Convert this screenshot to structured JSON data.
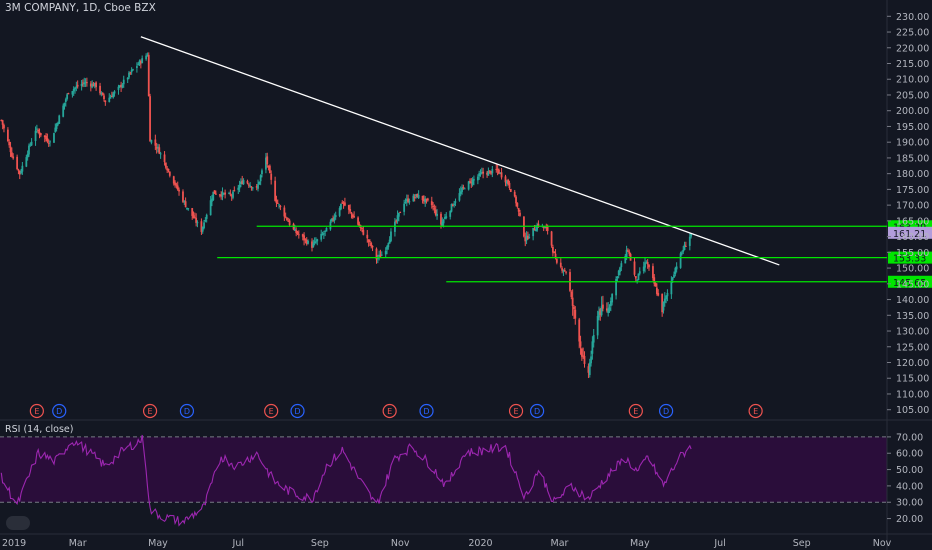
{
  "header": {
    "title": "3M COMPANY, 1D, Cboe BZX"
  },
  "rsi": {
    "title": "RSI (14, close)"
  },
  "colors": {
    "background": "#131722",
    "up": "#26a69a",
    "down": "#ef5350",
    "trendline": "#ffffff",
    "support": "#00e600",
    "rsi_line": "#9c27b0",
    "rsi_band": "#2a0d3a",
    "price_tag": "#b39ddb",
    "earnings": "#ef5350",
    "dividend": "#2962ff"
  },
  "chart_data": [
    {
      "type": "candlestick",
      "title": "3M COMPANY, 1D, Cboe BZX",
      "x_tick_labels": [
        "2019",
        "Mar",
        "May",
        "Jul",
        "Sep",
        "Nov",
        "2020",
        "Mar",
        "May",
        "Jul",
        "Sep",
        "Nov"
      ],
      "y_tick_labels": [
        "230.00",
        "225.00",
        "220.00",
        "215.00",
        "210.00",
        "205.00",
        "200.00",
        "195.00",
        "190.00",
        "185.00",
        "180.00",
        "175.00",
        "170.00",
        "165.00",
        "160.00",
        "155.00",
        "150.00",
        "145.00",
        "140.00",
        "135.00",
        "130.00",
        "125.00",
        "120.00",
        "115.00",
        "110.00",
        "105.00"
      ],
      "ylim": [
        103,
        232
      ],
      "grid": false,
      "series": [
        {
          "anchors": [
            [
              "2019-01-02",
              197
            ],
            [
              "2019-01-10",
              186
            ],
            [
              "2019-01-16",
              180
            ],
            [
              "2019-01-28",
              194
            ],
            [
              "2019-02-08",
              190
            ],
            [
              "2019-02-22",
              206
            ],
            [
              "2019-03-06",
              209
            ],
            [
              "2019-03-15",
              208
            ],
            [
              "2019-03-22",
              203
            ],
            [
              "2019-04-01",
              207
            ],
            [
              "2019-04-12",
              213
            ],
            [
              "2019-04-23",
              218
            ],
            [
              "2019-04-25",
              191
            ],
            [
              "2019-05-01",
              188
            ],
            [
              "2019-05-10",
              180
            ],
            [
              "2019-05-22",
              170
            ],
            [
              "2019-06-03",
              162
            ],
            [
              "2019-06-12",
              174
            ],
            [
              "2019-06-26",
              173
            ],
            [
              "2019-07-05",
              178
            ],
            [
              "2019-07-15",
              175
            ],
            [
              "2019-07-22",
              185
            ],
            [
              "2019-07-29",
              172
            ],
            [
              "2019-08-12",
              162
            ],
            [
              "2019-08-26",
              157
            ],
            [
              "2019-09-06",
              162
            ],
            [
              "2019-09-18",
              171
            ],
            [
              "2019-09-27",
              166
            ],
            [
              "2019-10-10",
              157
            ],
            [
              "2019-10-14",
              153
            ],
            [
              "2019-10-20",
              155
            ],
            [
              "2019-10-25",
              161
            ],
            [
              "2019-11-04",
              171
            ],
            [
              "2019-11-14",
              173
            ],
            [
              "2019-11-25",
              170
            ],
            [
              "2019-12-02",
              164
            ],
            [
              "2019-12-12",
              171
            ],
            [
              "2019-12-20",
              176
            ],
            [
              "2020-01-02",
              180
            ],
            [
              "2020-01-14",
              181
            ],
            [
              "2020-01-22",
              177
            ],
            [
              "2020-01-28",
              171
            ],
            [
              "2020-02-04",
              159
            ],
            [
              "2020-02-14",
              164
            ],
            [
              "2020-02-21",
              162
            ],
            [
              "2020-02-28",
              151
            ],
            [
              "2020-03-06",
              149
            ],
            [
              "2020-03-12",
              136
            ],
            [
              "2020-03-16",
              128
            ],
            [
              "2020-03-20",
              118
            ],
            [
              "2020-03-23",
              117
            ],
            [
              "2020-03-30",
              136
            ],
            [
              "2020-04-07",
              137
            ],
            [
              "2020-04-14",
              148
            ],
            [
              "2020-04-22",
              156
            ],
            [
              "2020-04-28",
              146
            ],
            [
              "2020-05-06",
              152
            ],
            [
              "2020-05-12",
              145
            ],
            [
              "2020-05-18",
              137
            ],
            [
              "2020-05-22",
              142
            ],
            [
              "2020-05-28",
              150
            ],
            [
              "2020-06-03",
              156
            ],
            [
              "2020-06-09",
              161
            ]
          ]
        }
      ],
      "trendline": {
        "start": [
          "2019-04-18",
          223.5
        ],
        "end": [
          "2020-08-15",
          151
        ]
      },
      "support_levels": [
        {
          "price": 163.29,
          "label": "163.29",
          "from": "2019-07-15"
        },
        {
          "price": 153.33,
          "label": "153.33",
          "from": "2019-06-15"
        },
        {
          "price": 145.65,
          "label": "145.65",
          "from": "2019-12-06"
        }
      ],
      "current_price": {
        "price": 161.21,
        "label": "161.21"
      },
      "events": [
        {
          "kind": "E",
          "date": "2019-01-29"
        },
        {
          "kind": "D",
          "date": "2019-02-15"
        },
        {
          "kind": "E",
          "date": "2019-04-25"
        },
        {
          "kind": "D",
          "date": "2019-05-23"
        },
        {
          "kind": "E",
          "date": "2019-07-26"
        },
        {
          "kind": "D",
          "date": "2019-08-15"
        },
        {
          "kind": "E",
          "date": "2019-10-24"
        },
        {
          "kind": "D",
          "date": "2019-11-21"
        },
        {
          "kind": "E",
          "date": "2020-01-28"
        },
        {
          "kind": "D",
          "date": "2020-02-13"
        },
        {
          "kind": "E",
          "date": "2020-04-28"
        },
        {
          "kind": "D",
          "date": "2020-05-21"
        },
        {
          "kind": "E",
          "date": "2020-07-28"
        }
      ]
    },
    {
      "type": "line",
      "title": "RSI (14, close)",
      "y_tick_labels": [
        "70.00",
        "60.00",
        "50.00",
        "40.00",
        "30.00",
        "20.00"
      ],
      "ylim": [
        13,
        73
      ],
      "band": [
        30,
        70
      ],
      "series": [
        {
          "anchors": [
            [
              "2019-01-02",
              45
            ],
            [
              "2019-01-14",
              28
            ],
            [
              "2019-01-30",
              60
            ],
            [
              "2019-02-12",
              55
            ],
            [
              "2019-02-25",
              68
            ],
            [
              "2019-03-08",
              62
            ],
            [
              "2019-03-22",
              52
            ],
            [
              "2019-04-05",
              62
            ],
            [
              "2019-04-20",
              69
            ],
            [
              "2019-04-25",
              25
            ],
            [
              "2019-05-05",
              21
            ],
            [
              "2019-05-20",
              18
            ],
            [
              "2019-06-05",
              27
            ],
            [
              "2019-06-18",
              58
            ],
            [
              "2019-06-30",
              52
            ],
            [
              "2019-07-15",
              60
            ],
            [
              "2019-07-28",
              43
            ],
            [
              "2019-08-10",
              36
            ],
            [
              "2019-08-26",
              32
            ],
            [
              "2019-09-06",
              52
            ],
            [
              "2019-09-18",
              62
            ],
            [
              "2019-10-01",
              44
            ],
            [
              "2019-10-14",
              28
            ],
            [
              "2019-10-28",
              57
            ],
            [
              "2019-11-10",
              64
            ],
            [
              "2019-11-25",
              52
            ],
            [
              "2019-12-06",
              40
            ],
            [
              "2019-12-20",
              60
            ],
            [
              "2020-01-05",
              62
            ],
            [
              "2020-01-20",
              64
            ],
            [
              "2020-02-04",
              33
            ],
            [
              "2020-02-14",
              50
            ],
            [
              "2020-02-26",
              30
            ],
            [
              "2020-03-10",
              40
            ],
            [
              "2020-03-23",
              32
            ],
            [
              "2020-04-05",
              45
            ],
            [
              "2020-04-20",
              57
            ],
            [
              "2020-04-30",
              48
            ],
            [
              "2020-05-07",
              58
            ],
            [
              "2020-05-19",
              40
            ],
            [
              "2020-05-30",
              56
            ],
            [
              "2020-06-09",
              65
            ]
          ]
        }
      ]
    }
  ]
}
